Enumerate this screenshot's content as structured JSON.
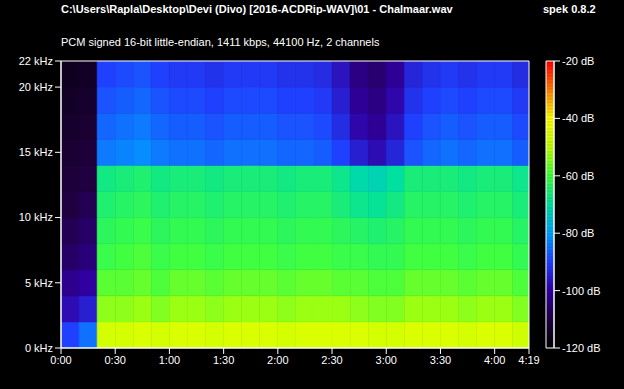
{
  "chart_data": {
    "type": "heatmap",
    "title": "C:\\Users\\Rapla\\Desktop\\Devi (Divo) [2016-ACDRip-WAV]\\01 - Chalmaar.wav",
    "subtitle": "PCM signed 16-bit little-endian, 1411 kbps, 44100 Hz, 2 channels",
    "annotations": [
      "spek 0.8.2"
    ],
    "grid": false,
    "xlim": [
      0,
      259
    ],
    "xticks": [
      {
        "value": 0,
        "label": "0:00"
      },
      {
        "value": 30,
        "label": "0:30"
      },
      {
        "value": 60,
        "label": "1:00"
      },
      {
        "value": 90,
        "label": "1:30"
      },
      {
        "value": 120,
        "label": "2:00"
      },
      {
        "value": 150,
        "label": "2:30"
      },
      {
        "value": 180,
        "label": "3:00"
      },
      {
        "value": 210,
        "label": "3:30"
      },
      {
        "value": 240,
        "label": "4:00"
      },
      {
        "value": 259,
        "label": "4:19"
      }
    ],
    "ylim": [
      0,
      22
    ],
    "yticks": [
      {
        "value": 0,
        "label": "0 kHz"
      },
      {
        "value": 5,
        "label": "5 kHz"
      },
      {
        "value": 10,
        "label": "10 kHz"
      },
      {
        "value": 15,
        "label": "15 kHz"
      },
      {
        "value": 20,
        "label": "20 kHz"
      },
      {
        "value": 22,
        "label": "22 kHz"
      }
    ],
    "x_bins": [
      0,
      10,
      20,
      30,
      40,
      50,
      60,
      70,
      80,
      90,
      100,
      110,
      120,
      130,
      140,
      150,
      160,
      170,
      180,
      190,
      200,
      210,
      220,
      230,
      240,
      250,
      259
    ],
    "y_bins": [
      0,
      2,
      4,
      6,
      8,
      10,
      12,
      14,
      16,
      18,
      20,
      22
    ],
    "values": [
      [
        -90,
        -85,
        -47,
        -47,
        -46,
        -47,
        -46,
        -46,
        -47,
        -46,
        -46,
        -46,
        -47,
        -46,
        -46,
        -46,
        -46,
        -47,
        -47,
        -46,
        -46,
        -46,
        -47,
        -46,
        -46,
        -48
      ],
      [
        -98,
        -95,
        -54,
        -54,
        -53,
        -55,
        -53,
        -53,
        -54,
        -53,
        -53,
        -53,
        -54,
        -53,
        -53,
        -53,
        -54,
        -55,
        -55,
        -53,
        -53,
        -53,
        -54,
        -53,
        -53,
        -55
      ],
      [
        -102,
        -100,
        -58,
        -58,
        -57,
        -59,
        -57,
        -57,
        -58,
        -57,
        -57,
        -57,
        -58,
        -57,
        -57,
        -58,
        -58,
        -59,
        -59,
        -57,
        -57,
        -57,
        -58,
        -57,
        -57,
        -59
      ],
      [
        -106,
        -104,
        -61,
        -60,
        -59,
        -61,
        -60,
        -60,
        -61,
        -60,
        -60,
        -60,
        -61,
        -60,
        -60,
        -61,
        -61,
        -62,
        -62,
        -60,
        -60,
        -60,
        -61,
        -60,
        -60,
        -62
      ],
      [
        -108,
        -106,
        -63,
        -62,
        -61,
        -63,
        -62,
        -62,
        -63,
        -62,
        -62,
        -62,
        -63,
        -62,
        -62,
        -63,
        -64,
        -65,
        -64,
        -62,
        -62,
        -62,
        -63,
        -62,
        -62,
        -64
      ],
      [
        -110,
        -108,
        -65,
        -64,
        -63,
        -65,
        -64,
        -64,
        -65,
        -64,
        -64,
        -64,
        -65,
        -64,
        -64,
        -66,
        -68,
        -69,
        -67,
        -64,
        -64,
        -64,
        -65,
        -64,
        -64,
        -66
      ],
      [
        -111,
        -110,
        -67,
        -66,
        -65,
        -67,
        -66,
        -66,
        -67,
        -66,
        -66,
        -66,
        -67,
        -66,
        -66,
        -68,
        -71,
        -72,
        -70,
        -66,
        -66,
        -66,
        -67,
        -66,
        -66,
        -68
      ],
      [
        -112,
        -111,
        -84,
        -83,
        -82,
        -84,
        -85,
        -85,
        -86,
        -85,
        -85,
        -85,
        -86,
        -86,
        -87,
        -90,
        -95,
        -98,
        -94,
        -88,
        -86,
        -85,
        -86,
        -85,
        -85,
        -87
      ],
      [
        -113,
        -112,
        -86,
        -85,
        -84,
        -86,
        -87,
        -87,
        -88,
        -87,
        -87,
        -87,
        -88,
        -88,
        -89,
        -93,
        -99,
        -101,
        -97,
        -90,
        -88,
        -87,
        -88,
        -87,
        -87,
        -89
      ],
      [
        -114,
        -113,
        -88,
        -87,
        -86,
        -88,
        -89,
        -89,
        -90,
        -89,
        -89,
        -89,
        -90,
        -90,
        -91,
        -95,
        -101,
        -103,
        -99,
        -92,
        -90,
        -89,
        -90,
        -89,
        -89,
        -91
      ],
      [
        -115,
        -114,
        -90,
        -89,
        -88,
        -90,
        -91,
        -91,
        -92,
        -91,
        -91,
        -91,
        -92,
        -92,
        -93,
        -97,
        -103,
        -105,
        -101,
        -94,
        -92,
        -91,
        -92,
        -91,
        -91,
        -93
      ]
    ],
    "colorbar": {
      "lim": [
        -120,
        -20
      ],
      "ticks": [
        {
          "value": -20,
          "label": "-20 dB"
        },
        {
          "value": -40,
          "label": "-40 dB"
        },
        {
          "value": -60,
          "label": "-60 dB"
        },
        {
          "value": -80,
          "label": "-80 dB"
        },
        {
          "value": -100,
          "label": "-100 dB"
        },
        {
          "value": -120,
          "label": "-120 dB"
        }
      ]
    }
  }
}
